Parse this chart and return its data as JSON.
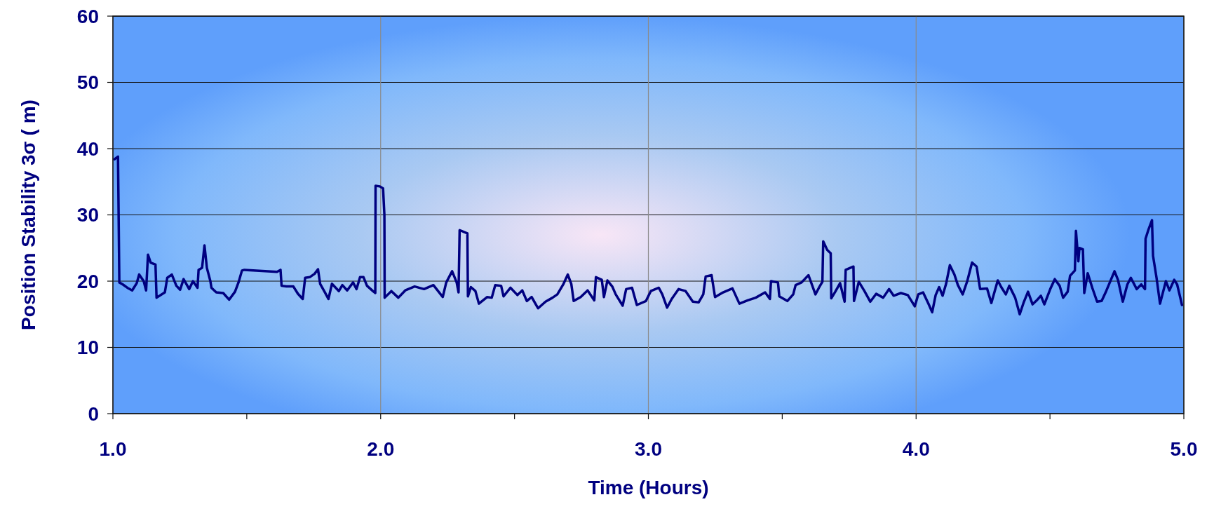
{
  "chart_data": {
    "type": "line",
    "xlabel": "Time (Hours)",
    "ylabel": "Position Stability 3σ ( m)",
    "xlim": [
      1,
      5
    ],
    "ylim": [
      0,
      60
    ],
    "xticks": [
      {
        "value": 1,
        "label": "1.0"
      },
      {
        "value": 1.5,
        "label": null
      },
      {
        "value": 2,
        "label": "2.0"
      },
      {
        "value": 2.5,
        "label": null
      },
      {
        "value": 3,
        "label": "3.0"
      },
      {
        "value": 3.5,
        "label": null
      },
      {
        "value": 4,
        "label": "4.0"
      },
      {
        "value": 4.5,
        "label": null
      },
      {
        "value": 5,
        "label": "5.0"
      }
    ],
    "yticks": [
      0,
      10,
      20,
      30,
      40,
      50,
      60
    ],
    "grid": true,
    "line_style": "solid",
    "marker": "none",
    "series": [
      {
        "color": "#000080",
        "x": [
          1.006,
          1.019,
          1.024,
          1.037,
          1.054,
          1.072,
          1.089,
          1.098,
          1.115,
          1.124,
          1.131,
          1.141,
          1.159,
          1.163,
          1.194,
          1.203,
          1.22,
          1.237,
          1.251,
          1.264,
          1.285,
          1.299,
          1.316,
          1.32,
          1.333,
          1.342,
          1.351,
          1.364,
          1.368,
          1.386,
          1.412,
          1.434,
          1.456,
          1.469,
          1.482,
          1.491,
          1.613,
          1.626,
          1.63,
          1.648,
          1.674,
          1.691,
          1.709,
          1.718,
          1.735,
          1.753,
          1.766,
          1.774,
          1.792,
          1.805,
          1.818,
          1.844,
          1.857,
          1.875,
          1.897,
          1.91,
          1.923,
          1.936,
          1.949,
          1.971,
          1.98,
          1.981,
          1.997,
          2.009,
          2.014,
          2.015,
          2.04,
          2.066,
          2.092,
          2.127,
          2.162,
          2.197,
          2.232,
          2.245,
          2.267,
          2.284,
          2.291,
          2.295,
          2.324,
          2.326,
          2.337,
          2.354,
          2.367,
          2.398,
          2.415,
          2.428,
          2.45,
          2.459,
          2.485,
          2.511,
          2.529,
          2.546,
          2.564,
          2.588,
          2.616,
          2.642,
          2.66,
          2.682,
          2.699,
          2.712,
          2.721,
          2.747,
          2.773,
          2.798,
          2.804,
          2.826,
          2.834,
          2.847,
          2.865,
          2.878,
          2.904,
          2.917,
          2.939,
          2.957,
          2.991,
          3.009,
          3.039,
          3.052,
          3.07,
          3.087,
          3.113,
          3.139,
          3.166,
          3.188,
          3.205,
          3.214,
          3.236,
          3.249,
          3.279,
          3.314,
          3.34,
          3.371,
          3.401,
          3.436,
          3.454,
          3.458,
          3.484,
          3.489,
          3.519,
          3.541,
          3.55,
          3.572,
          3.598,
          3.624,
          3.637,
          3.65,
          3.653,
          3.668,
          3.681,
          3.683,
          3.698,
          3.716,
          3.733,
          3.737,
          3.766,
          3.768,
          3.786,
          3.807,
          3.829,
          3.851,
          3.877,
          3.899,
          3.916,
          3.943,
          3.969,
          3.995,
          4.008,
          4.026,
          4.047,
          4.06,
          4.073,
          4.086,
          4.099,
          4.112,
          4.126,
          4.143,
          4.156,
          4.174,
          4.191,
          4.209,
          4.226,
          4.239,
          4.265,
          4.281,
          4.305,
          4.318,
          4.335,
          4.348,
          4.37,
          4.387,
          4.401,
          4.418,
          4.435,
          4.453,
          4.466,
          4.479,
          4.501,
          4.518,
          4.536,
          4.549,
          4.566,
          4.575,
          4.593,
          4.597,
          4.606,
          4.61,
          4.623,
          4.628,
          4.641,
          4.658,
          4.676,
          4.693,
          4.71,
          4.741,
          4.754,
          4.772,
          4.789,
          4.802,
          4.824,
          4.841,
          4.855,
          4.857,
          4.868,
          4.881,
          4.885,
          4.898,
          4.911,
          4.933,
          4.946,
          4.964,
          4.975,
          4.985,
          4.993
        ],
        "values": [
          38.4,
          38.8,
          19.8,
          19.5,
          19.0,
          18.6,
          19.7,
          21.0,
          20.0,
          18.6,
          24.0,
          22.8,
          22.5,
          17.5,
          18.3,
          20.5,
          21.0,
          19.3,
          18.7,
          20.3,
          18.8,
          20.0,
          19.0,
          21.7,
          22.0,
          25.4,
          22.0,
          20.0,
          19.0,
          18.3,
          18.2,
          17.2,
          18.4,
          19.8,
          21.6,
          21.7,
          21.4,
          21.7,
          19.3,
          19.2,
          19.2,
          18.1,
          17.3,
          20.5,
          20.6,
          21.1,
          21.8,
          19.6,
          18.3,
          17.3,
          19.6,
          18.5,
          19.4,
          18.6,
          19.8,
          18.8,
          20.6,
          20.6,
          19.3,
          18.5,
          18.2,
          34.4,
          34.3,
          34.0,
          30.0,
          17.5,
          18.5,
          17.5,
          18.6,
          19.2,
          18.8,
          19.4,
          17.6,
          19.8,
          21.5,
          19.8,
          18.3,
          27.7,
          27.2,
          17.7,
          19.1,
          18.5,
          16.6,
          17.6,
          17.5,
          19.4,
          19.3,
          17.7,
          19.0,
          17.9,
          18.6,
          17.0,
          17.6,
          15.9,
          16.9,
          17.5,
          18.0,
          19.5,
          21.0,
          19.6,
          17.0,
          17.6,
          18.6,
          17.1,
          20.6,
          20.2,
          17.6,
          20.1,
          19.2,
          18.0,
          16.3,
          18.8,
          19.0,
          16.4,
          17.0,
          18.5,
          19.0,
          18.0,
          16.0,
          17.3,
          18.8,
          18.5,
          16.9,
          16.8,
          18.0,
          20.7,
          20.9,
          17.6,
          18.3,
          18.9,
          16.6,
          17.1,
          17.5,
          18.3,
          17.3,
          20.0,
          19.8,
          17.7,
          17.0,
          18.0,
          19.4,
          19.8,
          20.9,
          18.0,
          19.0,
          19.9,
          26.0,
          24.7,
          24.2,
          17.4,
          18.4,
          19.7,
          16.9,
          21.7,
          22.2,
          17.0,
          19.9,
          18.5,
          16.9,
          18.1,
          17.5,
          18.8,
          17.8,
          18.2,
          17.9,
          16.2,
          18.0,
          18.3,
          16.5,
          15.3,
          17.9,
          19.1,
          17.8,
          19.6,
          22.4,
          21.0,
          19.4,
          18.0,
          20.0,
          22.8,
          22.2,
          18.8,
          18.9,
          16.7,
          20.1,
          19.1,
          18.0,
          19.3,
          17.5,
          15.0,
          16.7,
          18.4,
          16.5,
          17.2,
          17.8,
          16.5,
          18.8,
          20.3,
          19.3,
          17.5,
          18.4,
          20.8,
          21.6,
          27.6,
          23.0,
          25.0,
          24.8,
          18.2,
          21.2,
          19.0,
          16.9,
          17.0,
          18.5,
          21.5,
          20.2,
          16.9,
          19.5,
          20.5,
          18.8,
          19.5,
          18.8,
          26.4,
          27.8,
          29.2,
          23.8,
          20.5,
          16.6,
          20.0,
          18.6,
          20.2,
          19.5,
          17.8,
          16.4
        ]
      }
    ]
  }
}
